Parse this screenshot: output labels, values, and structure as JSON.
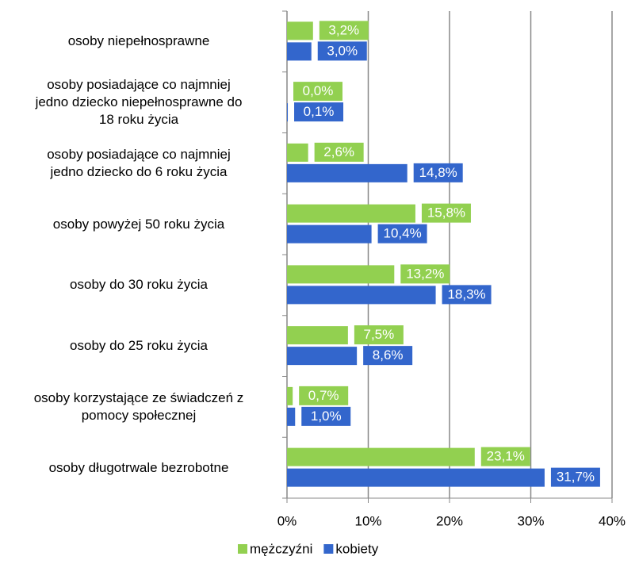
{
  "chart_data": {
    "type": "bar",
    "orientation": "horizontal",
    "categories": [
      "osoby niepełnosprawne",
      "osoby posiadające co najmniej\njedno dziecko niepełnosprawne do\n18 roku życia",
      "osoby posiadające co najmniej\njedno dziecko do 6 roku życia",
      "osoby powyżej 50 roku życia",
      "osoby do 30 roku życia",
      "osoby do 25 roku życia",
      "osoby korzystające ze świadczeń z\npomocy społecznej",
      "osoby długotrwale bezrobotne"
    ],
    "series": [
      {
        "name": "mężczyźni",
        "color": "#92d050",
        "values": [
          3.2,
          0.0,
          2.6,
          15.8,
          13.2,
          7.5,
          0.7,
          23.1
        ],
        "value_labels": [
          "3,2%",
          "0,0%",
          "2,6%",
          "15,8%",
          "13,2%",
          "7,5%",
          "0,7%",
          "23,1%"
        ]
      },
      {
        "name": "kobiety",
        "color": "#3366cc",
        "values": [
          3.0,
          0.1,
          14.8,
          10.4,
          18.3,
          8.6,
          1.0,
          31.7
        ],
        "value_labels": [
          "3,0%",
          "0,1%",
          "14,8%",
          "10,4%",
          "18,3%",
          "8,6%",
          "1,0%",
          "31,7%"
        ]
      }
    ],
    "xlim": [
      0,
      40
    ],
    "xticks": [
      {
        "value": 0,
        "label": "0%"
      },
      {
        "value": 10,
        "label": "10%"
      },
      {
        "value": 20,
        "label": "20%"
      },
      {
        "value": 30,
        "label": "30%"
      },
      {
        "value": 40,
        "label": "40%"
      }
    ],
    "grid": true,
    "legend": "bottom"
  }
}
